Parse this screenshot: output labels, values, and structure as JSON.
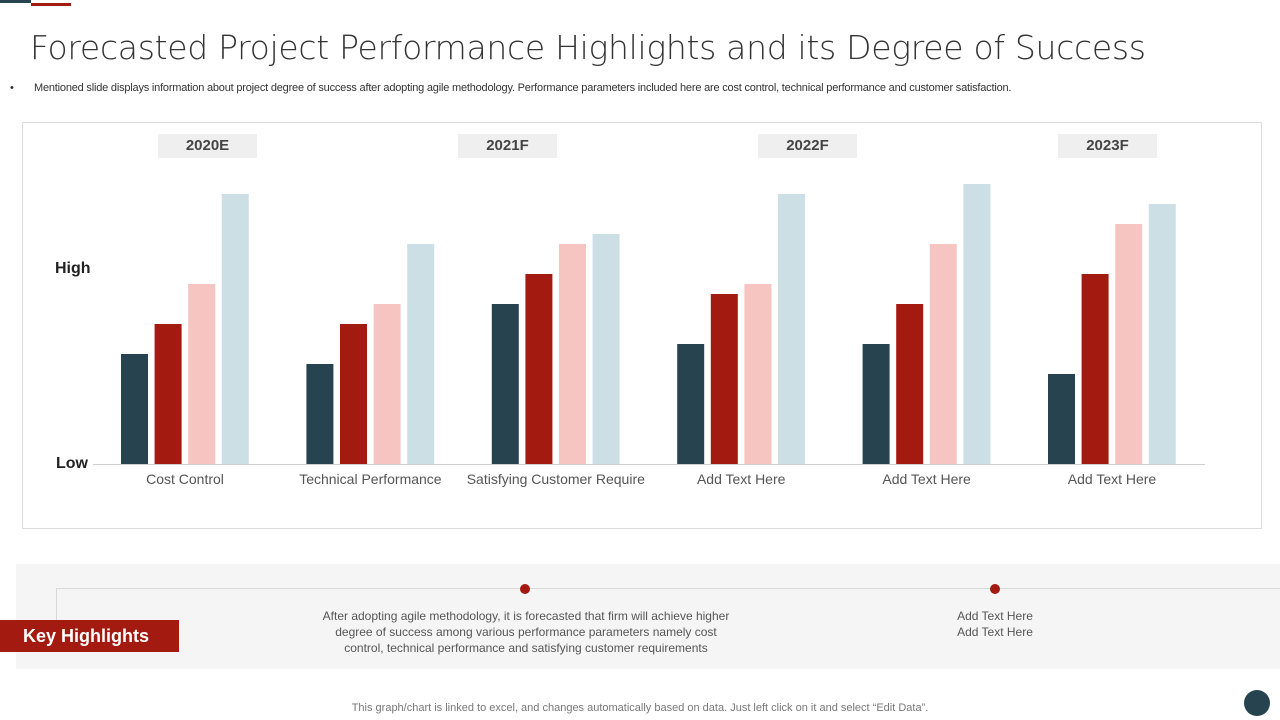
{
  "title": "Forecasted Project Performance Highlights and its Degree of Success",
  "subtitle": "Mentioned slide displays information about project degree of success after adopting agile methodology. Performance parameters included here are cost control, technical performance and customer satisfaction.",
  "years": [
    "2020E",
    "2021F",
    "2022F",
    "2023F"
  ],
  "chart_data": {
    "type": "bar",
    "categories": [
      "Cost Control",
      "Technical Performance",
      "Satisfying Customer Require",
      "Add Text Here",
      "Add Text Here",
      "Add Text Here"
    ],
    "series": [
      {
        "values": [
          11,
          10,
          16,
          12,
          12,
          9
        ],
        "color": "#27434f"
      },
      {
        "values": [
          14,
          14,
          19,
          17,
          16,
          19
        ],
        "color": "#a31a11"
      },
      {
        "values": [
          18,
          16,
          22,
          18,
          22,
          24
        ],
        "color": "#f6c4c1"
      },
      {
        "values": [
          27,
          22,
          23,
          27,
          28,
          26
        ],
        "color": "#ccdfe5"
      }
    ],
    "y_tick_labels": {
      "low": "Low",
      "high": "High"
    },
    "ylim": [
      0,
      30
    ],
    "grid": false,
    "legend": "none"
  },
  "highlights": {
    "label": "Key Highlights",
    "items": [
      {
        "lines": [
          "After adopting agile methodology, it is forecasted that firm will achieve higher",
          "degree of success among various performance parameters namely cost",
          "control, technical performance and satisfying customer requirements"
        ]
      },
      {
        "lines": [
          "Add Text Here",
          "Add Text Here"
        ]
      }
    ]
  },
  "footer": "This graph/chart is linked to excel, and changes automatically based on data. Just left click on it and select “Edit Data”."
}
